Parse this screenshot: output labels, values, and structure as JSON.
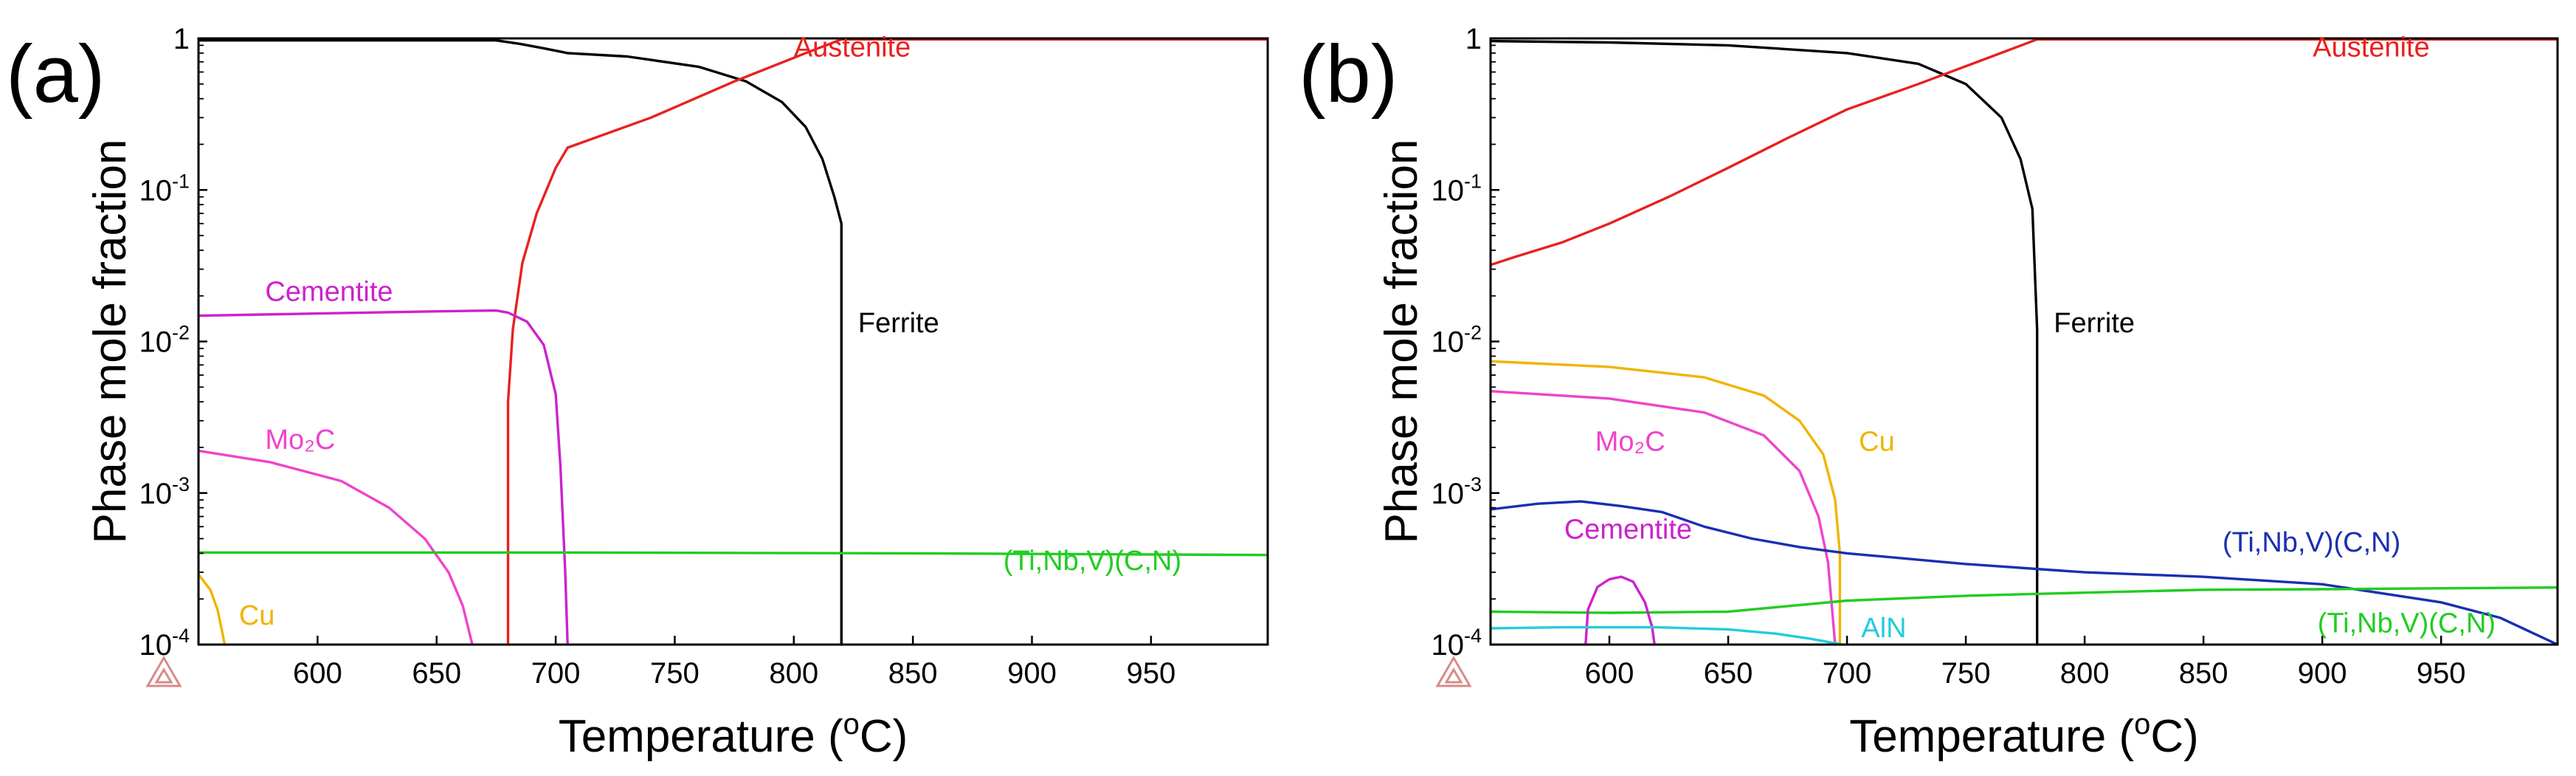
{
  "chart_data": [
    {
      "type": "line",
      "panel_label": "(a)",
      "xlabel": "Temperature (°C)",
      "xlabel_parts": {
        "pre": "Temperature (",
        "sup": "o",
        "post": "C)"
      },
      "ylabel": "Phase mole fraction",
      "yscale": "log",
      "xlim": [
        550,
        999
      ],
      "ylim": [
        0.0001,
        1
      ],
      "xticks": [
        "600",
        "650",
        "700",
        "750",
        "800",
        "850",
        "900",
        "950"
      ],
      "yticks": [
        {
          "value": 1,
          "base": "1",
          "exp": ""
        },
        {
          "value": 0.1,
          "base": "10",
          "exp": "-1"
        },
        {
          "value": 0.01,
          "base": "10",
          "exp": "-2"
        },
        {
          "value": 0.001,
          "base": "10",
          "exp": "-3"
        },
        {
          "value": 0.0001,
          "base": "10",
          "exp": "-4"
        }
      ],
      "series": [
        {
          "name": "Ferrite",
          "color": "#000000",
          "label": "Ferrite",
          "label_at": [
            827,
            0.0115
          ],
          "points": [
            [
              550,
              0.97
            ],
            [
              600,
              0.97
            ],
            [
              650,
              0.97
            ],
            [
              675,
              0.97
            ],
            [
              685,
              0.92
            ],
            [
              695,
              0.86
            ],
            [
              705,
              0.8
            ],
            [
              730,
              0.76
            ],
            [
              760,
              0.65
            ],
            [
              780,
              0.52
            ],
            [
              795,
              0.38
            ],
            [
              805,
              0.26
            ],
            [
              812,
              0.16
            ],
            [
              817,
              0.09
            ],
            [
              820,
              0.06
            ],
            [
              820,
              0.0001
            ]
          ]
        },
        {
          "name": "Austenite",
          "color": "#e8211f",
          "label": "Austenite",
          "label_at": [
            800,
            0.76
          ],
          "points": [
            [
              680,
              0.0001
            ],
            [
              680,
              0.004
            ],
            [
              682,
              0.012
            ],
            [
              686,
              0.033
            ],
            [
              692,
              0.07
            ],
            [
              700,
              0.14
            ],
            [
              705,
              0.19
            ],
            [
              740,
              0.3
            ],
            [
              775,
              0.52
            ],
            [
              805,
              0.8
            ],
            [
              820,
              0.985
            ],
            [
              999,
              0.985
            ]
          ]
        },
        {
          "name": "Cementite",
          "color": "#cc22cc",
          "label": "Cementite",
          "label_at": [
            578,
            0.0185
          ],
          "points": [
            [
              550,
              0.0148
            ],
            [
              600,
              0.0153
            ],
            [
              650,
              0.0158
            ],
            [
              675,
              0.016
            ],
            [
              680,
              0.0155
            ],
            [
              688,
              0.0135
            ],
            [
              695,
              0.0095
            ],
            [
              700,
              0.0045
            ],
            [
              702,
              0.0015
            ],
            [
              704,
              0.0003
            ],
            [
              705,
              0.0001
            ]
          ]
        },
        {
          "name": "Mo2C",
          "color": "#ee44cc",
          "label": "Mo₂C",
          "label_at": [
            578,
            0.00195
          ],
          "points": [
            [
              550,
              0.0019
            ],
            [
              580,
              0.0016
            ],
            [
              610,
              0.0012
            ],
            [
              630,
              0.0008
            ],
            [
              645,
              0.0005
            ],
            [
              655,
              0.0003
            ],
            [
              661,
              0.00018
            ],
            [
              665,
              0.0001
            ]
          ]
        },
        {
          "name": "(Ti,Nb,V)(C,N)",
          "color": "#22cc22",
          "label": "(Ti,Nb,V)(C,N)",
          "label_at": [
            888,
            0.00031
          ],
          "points": [
            [
              550,
              0.000405
            ],
            [
              700,
              0.000405
            ],
            [
              850,
              0.0004
            ],
            [
              999,
              0.00039
            ]
          ]
        },
        {
          "name": "Cu",
          "color": "#f0b400",
          "label": "Cu",
          "label_at": [
            567,
            0.000135
          ],
          "points": [
            [
              550,
              0.00029
            ],
            [
              555,
              0.00023
            ],
            [
              558,
              0.00017
            ],
            [
              560,
              0.00012
            ],
            [
              561,
              0.0001
            ]
          ]
        }
      ]
    },
    {
      "type": "line",
      "panel_label": "(b)",
      "xlabel": "Temperature (°C)",
      "xlabel_parts": {
        "pre": "Temperature (",
        "sup": "o",
        "post": "C)"
      },
      "ylabel": "Phase mole fraction",
      "yscale": "log",
      "xlim": [
        550,
        999
      ],
      "ylim": [
        0.0001,
        1
      ],
      "xticks": [
        "600",
        "650",
        "700",
        "750",
        "800",
        "850",
        "900",
        "950"
      ],
      "yticks": [
        {
          "value": 1,
          "base": "1",
          "exp": ""
        },
        {
          "value": 0.1,
          "base": "10",
          "exp": "-1"
        },
        {
          "value": 0.01,
          "base": "10",
          "exp": "-2"
        },
        {
          "value": 0.001,
          "base": "10",
          "exp": "-3"
        },
        {
          "value": 0.0001,
          "base": "10",
          "exp": "-4"
        }
      ],
      "series": [
        {
          "name": "Ferrite",
          "color": "#000000",
          "label": "Ferrite",
          "label_at": [
            787,
            0.0115
          ],
          "points": [
            [
              550,
              0.96
            ],
            [
              600,
              0.94
            ],
            [
              650,
              0.9
            ],
            [
              700,
              0.8
            ],
            [
              730,
              0.68
            ],
            [
              750,
              0.5
            ],
            [
              765,
              0.3
            ],
            [
              773,
              0.16
            ],
            [
              778,
              0.075
            ],
            [
              780,
              0.012
            ],
            [
              780,
              0.0001
            ]
          ]
        },
        {
          "name": "Austenite",
          "color": "#e8211f",
          "label": "Austenite",
          "label_at": [
            896,
            0.76
          ],
          "points": [
            [
              550,
              0.032
            ],
            [
              560,
              0.036
            ],
            [
              580,
              0.045
            ],
            [
              600,
              0.06
            ],
            [
              625,
              0.09
            ],
            [
              650,
              0.14
            ],
            [
              675,
              0.22
            ],
            [
              700,
              0.34
            ],
            [
              730,
              0.5
            ],
            [
              760,
              0.75
            ],
            [
              780,
              0.985
            ],
            [
              999,
              0.985
            ]
          ]
        },
        {
          "name": "Cu",
          "color": "#f0b400",
          "label": "Cu",
          "label_at": [
            705,
            0.0019
          ],
          "points": [
            [
              550,
              0.0074
            ],
            [
              600,
              0.0068
            ],
            [
              640,
              0.0058
            ],
            [
              665,
              0.0044
            ],
            [
              680,
              0.003
            ],
            [
              690,
              0.0018
            ],
            [
              695,
              0.0009
            ],
            [
              697,
              0.0004
            ],
            [
              697,
              0.0001
            ]
          ]
        },
        {
          "name": "Mo2C",
          "color": "#ee44cc",
          "label": "Mo₂C",
          "label_at": [
            594,
            0.0019
          ],
          "points": [
            [
              550,
              0.0047
            ],
            [
              600,
              0.0042
            ],
            [
              640,
              0.0034
            ],
            [
              665,
              0.0024
            ],
            [
              680,
              0.0014
            ],
            [
              688,
              0.0007
            ],
            [
              692,
              0.00035
            ],
            [
              695,
              0.0001
            ]
          ]
        },
        {
          "name": "(Ti,Nb,V)(C,N)_blue",
          "color": "#1a2fb0",
          "label": "(Ti,Nb,V)(C,N)",
          "label_at": [
            858,
            0.00041
          ],
          "points": [
            [
              550,
              0.00078
            ],
            [
              570,
              0.00085
            ],
            [
              588,
              0.00088
            ],
            [
              605,
              0.00082
            ],
            [
              622,
              0.00075
            ],
            [
              640,
              0.0006
            ],
            [
              660,
              0.0005
            ],
            [
              680,
              0.00044
            ],
            [
              700,
              0.0004
            ],
            [
              750,
              0.00034
            ],
            [
              800,
              0.0003
            ],
            [
              850,
              0.00028
            ],
            [
              900,
              0.00025
            ],
            [
              950,
              0.00019
            ],
            [
              975,
              0.00015
            ],
            [
              999,
              0.0001
            ]
          ]
        },
        {
          "name": "(Ti,Nb,V)(C,N)_green",
          "color": "#22cc22",
          "label": "(Ti,Nb,V)(C,N)",
          "label_at": [
            898,
            0.00012
          ],
          "points": [
            [
              550,
              0.000165
            ],
            [
              600,
              0.000162
            ],
            [
              650,
              0.000165
            ],
            [
              700,
              0.000195
            ],
            [
              750,
              0.00021
            ],
            [
              800,
              0.00022
            ],
            [
              850,
              0.00023
            ],
            [
              900,
              0.000232
            ],
            [
              950,
              0.000235
            ],
            [
              999,
              0.000238
            ]
          ]
        },
        {
          "name": "Cementite",
          "color": "#cc22cc",
          "label": "Cementite",
          "label_at": [
            581,
            0.0005
          ],
          "points": [
            [
              590,
              0.0001
            ],
            [
              591,
              0.00017
            ],
            [
              595,
              0.00024
            ],
            [
              600,
              0.00027
            ],
            [
              605,
              0.00028
            ],
            [
              610,
              0.00026
            ],
            [
              615,
              0.00019
            ],
            [
              618,
              0.00013
            ],
            [
              619,
              0.0001
            ]
          ]
        },
        {
          "name": "AlN",
          "color": "#22ccdd",
          "label": "AlN",
          "label_at": [
            706,
            0.000112
          ],
          "points": [
            [
              550,
              0.000128
            ],
            [
              580,
              0.00013
            ],
            [
              620,
              0.00013
            ],
            [
              650,
              0.000126
            ],
            [
              670,
              0.000118
            ],
            [
              685,
              0.000109
            ],
            [
              695,
              0.000102
            ],
            [
              698,
              0.0001
            ]
          ]
        }
      ]
    }
  ]
}
